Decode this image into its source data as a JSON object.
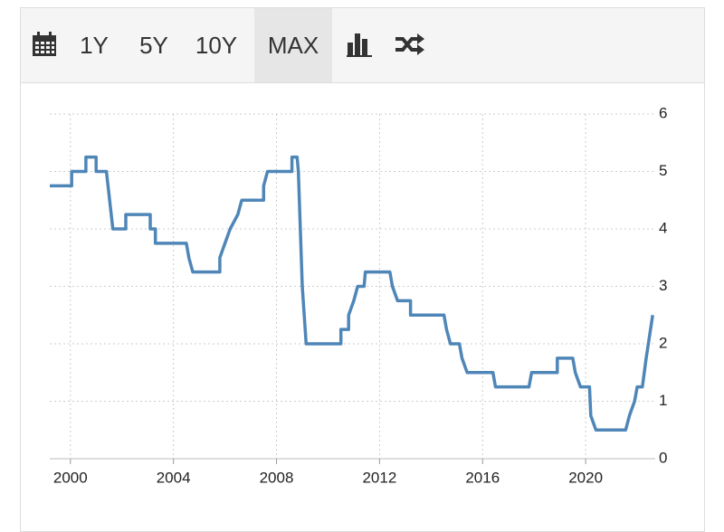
{
  "toolbar": {
    "ranges": [
      "1Y",
      "5Y",
      "10Y",
      "MAX"
    ],
    "active": 3
  },
  "chart_data": {
    "type": "line",
    "x": [
      1999.2,
      2000.05,
      2000.05,
      2000.6,
      2000.6,
      2001.0,
      2001.0,
      2001.4,
      2001.65,
      2002.15,
      2002.15,
      2003.1,
      2003.1,
      2003.3,
      2003.3,
      2004.5,
      2004.6,
      2004.75,
      2005.8,
      2005.8,
      2006.0,
      2006.2,
      2006.5,
      2006.65,
      2007.5,
      2007.5,
      2007.65,
      2008.6,
      2008.6,
      2008.8,
      2008.85,
      2009.0,
      2009.15,
      2010.5,
      2010.5,
      2010.8,
      2010.8,
      2011.0,
      2011.15,
      2011.4,
      2011.45,
      2012.4,
      2012.5,
      2012.7,
      2013.2,
      2013.2,
      2014.5,
      2014.6,
      2014.75,
      2015.1,
      2015.2,
      2015.4,
      2016.4,
      2016.5,
      2017.8,
      2017.9,
      2018.9,
      2018.9,
      2019.5,
      2019.6,
      2019.8,
      2020.15,
      2020.2,
      2020.4,
      2021.55,
      2021.7,
      2021.9,
      2022.0,
      2022.2,
      2022.35,
      2022.6
    ],
    "series": [
      {
        "color": "#4f86b8",
        "values": [
          4.75,
          4.75,
          5.0,
          5.0,
          5.25,
          5.25,
          5.0,
          5.0,
          4.0,
          4.0,
          4.25,
          4.25,
          4.0,
          4.0,
          3.75,
          3.75,
          3.5,
          3.25,
          3.25,
          3.5,
          3.75,
          4.0,
          4.25,
          4.5,
          4.5,
          4.75,
          5.0,
          5.0,
          5.25,
          5.25,
          5.0,
          3.0,
          2.0,
          2.0,
          2.25,
          2.25,
          2.5,
          2.75,
          3.0,
          3.0,
          3.25,
          3.25,
          3.0,
          2.75,
          2.75,
          2.5,
          2.5,
          2.25,
          2.0,
          2.0,
          1.75,
          1.5,
          1.5,
          1.25,
          1.25,
          1.5,
          1.5,
          1.75,
          1.75,
          1.5,
          1.25,
          1.25,
          0.75,
          0.5,
          0.5,
          0.75,
          1.0,
          1.25,
          1.25,
          1.75,
          2.5
        ]
      }
    ],
    "xlim": [
      1999.2,
      2022.7
    ],
    "xticks": [
      2000,
      2004,
      2008,
      2012,
      2016,
      2020
    ],
    "ylim": [
      0,
      6
    ],
    "yticks": [
      0,
      1,
      2,
      3,
      4,
      5,
      6
    ],
    "grid": true
  }
}
